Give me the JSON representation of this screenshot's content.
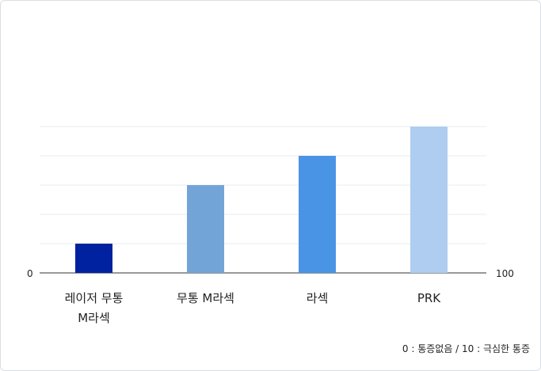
{
  "chart_data": {
    "type": "bar",
    "categories": [
      [
        "레이저 무통",
        "M라섹"
      ],
      [
        "무통 M라섹"
      ],
      [
        "라섹"
      ],
      [
        "PRK"
      ]
    ],
    "values": [
      1,
      3,
      4,
      5
    ],
    "colors": [
      "#0022a0",
      "#73a4d8",
      "#4a94e6",
      "#aecdf0"
    ],
    "ylim": [
      0,
      5
    ],
    "grid": true,
    "left_axis_label": "0",
    "right_axis_label": "100",
    "note": "0 : 통증없음 / 10 : 극심한 통증"
  }
}
